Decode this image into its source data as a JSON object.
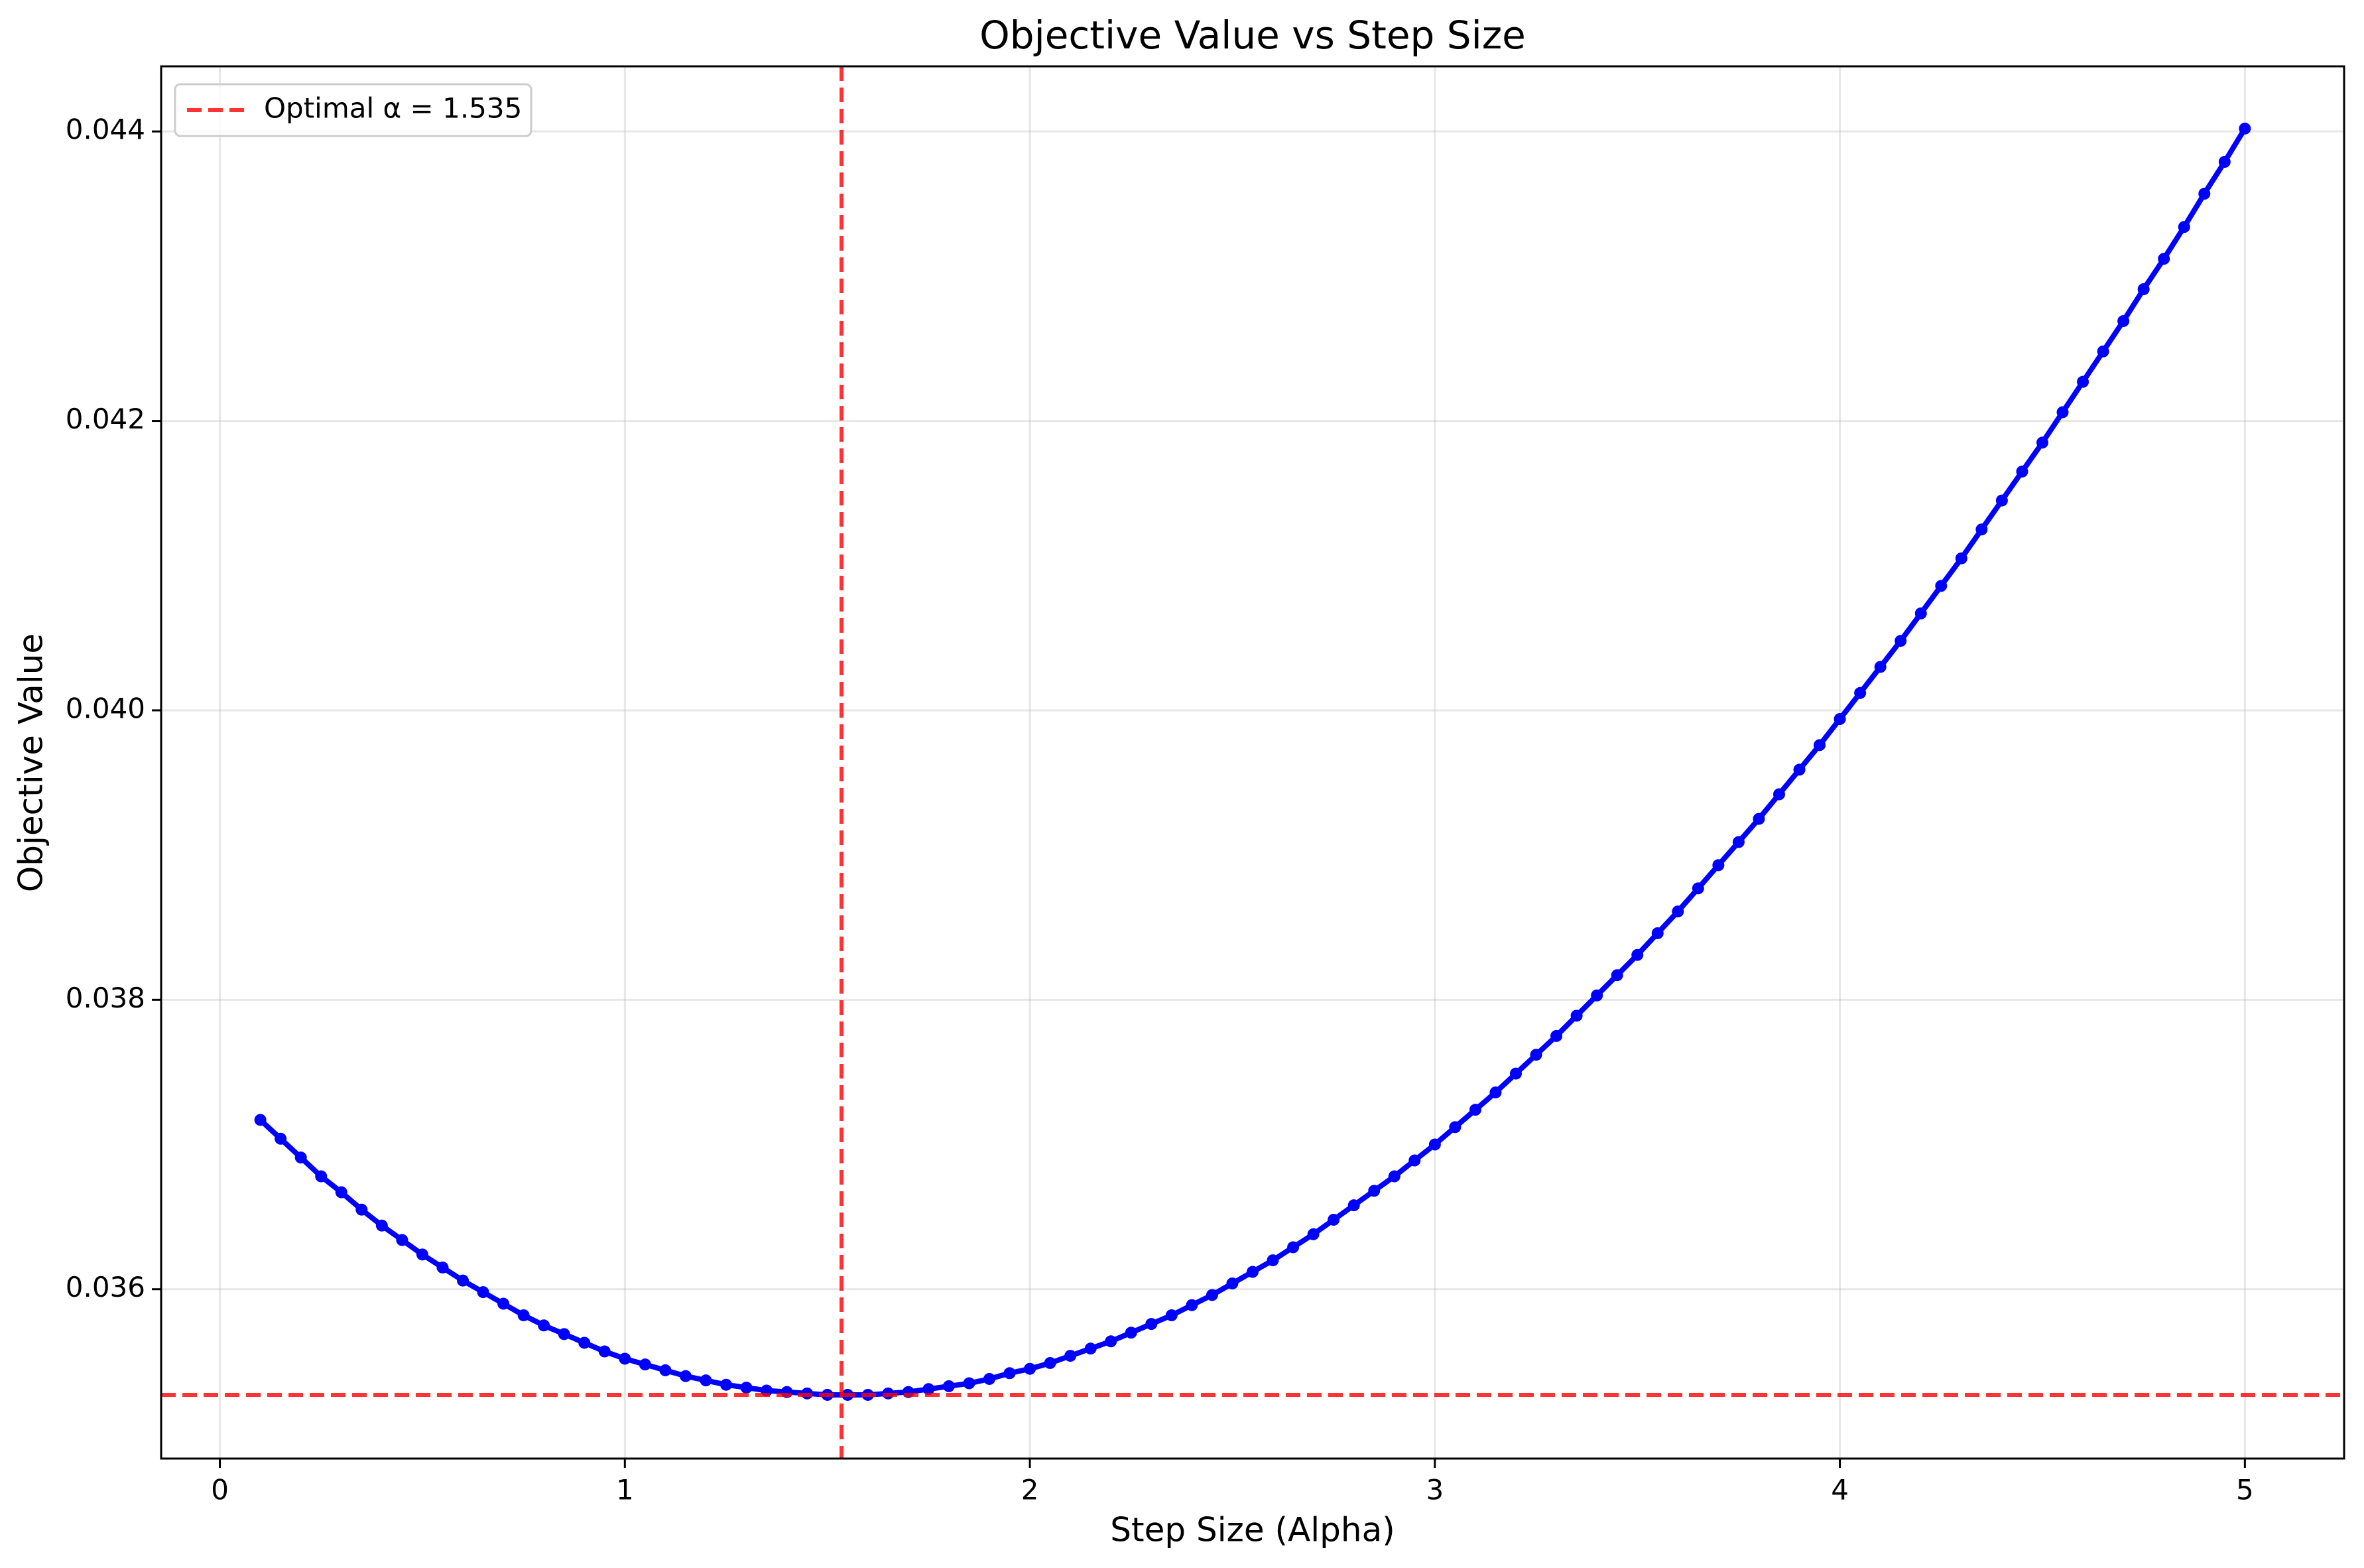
{
  "chart_data": {
    "type": "line",
    "title": "Objective Value vs Step Size",
    "x_label": "Step Size (Alpha)",
    "y_label": "Objective Value",
    "x": [
      0.1,
      0.15,
      0.2,
      0.25,
      0.3,
      0.35,
      0.4,
      0.45,
      0.5,
      0.55,
      0.6,
      0.65,
      0.7,
      0.75,
      0.8,
      0.85,
      0.9,
      0.95,
      1.0,
      1.05,
      1.1,
      1.15,
      1.2,
      1.25,
      1.3,
      1.35,
      1.4,
      1.45,
      1.5,
      1.55,
      1.6,
      1.65,
      1.7,
      1.75,
      1.8,
      1.85,
      1.9,
      1.95,
      2.0,
      2.05,
      2.1,
      2.15,
      2.2,
      2.25,
      2.3,
      2.35,
      2.4,
      2.45,
      2.5,
      2.55,
      2.6,
      2.65,
      2.7,
      2.75,
      2.8,
      2.85,
      2.9,
      2.95,
      3.0,
      3.05,
      3.1,
      3.15,
      3.2,
      3.25,
      3.3,
      3.35,
      3.4,
      3.45,
      3.5,
      3.55,
      3.6,
      3.65,
      3.7,
      3.75,
      3.8,
      3.85,
      3.9,
      3.95,
      4.0,
      4.05,
      4.1,
      4.15,
      4.2,
      4.25,
      4.3,
      4.35,
      4.4,
      4.45,
      4.5,
      4.55,
      4.6,
      4.65,
      4.7,
      4.75,
      4.8,
      4.85,
      4.9,
      4.95,
      5.0
    ],
    "series": [
      {
        "color": "#0000ff",
        "values": [
          0.03717,
          0.03704,
          0.03691,
          0.03678,
          0.03667,
          0.03655,
          0.03644,
          0.03634,
          0.03624,
          0.03615,
          0.03606,
          0.03598,
          0.0359,
          0.03582,
          0.03575,
          0.03569,
          0.03563,
          0.03557,
          0.03552,
          0.03548,
          0.03544,
          0.0354,
          0.03537,
          0.03534,
          0.03532,
          0.0353,
          0.03529,
          0.03528,
          0.03527,
          0.03527,
          0.03527,
          0.03528,
          0.03529,
          0.03531,
          0.03533,
          0.03535,
          0.03538,
          0.03542,
          0.03545,
          0.03549,
          0.03554,
          0.03559,
          0.03564,
          0.0357,
          0.03576,
          0.03582,
          0.03589,
          0.03596,
          0.03604,
          0.03612,
          0.0362,
          0.03629,
          0.03638,
          0.03648,
          0.03658,
          0.03668,
          0.03678,
          0.03689,
          0.037,
          0.03712,
          0.03724,
          0.03736,
          0.03749,
          0.03762,
          0.03775,
          0.03789,
          0.03803,
          0.03817,
          0.03831,
          0.03846,
          0.03861,
          0.03877,
          0.03893,
          0.03909,
          0.03925,
          0.03942,
          0.03959,
          0.03976,
          0.03994,
          0.04012,
          0.0403,
          0.04048,
          0.04067,
          0.04086,
          0.04105,
          0.04125,
          0.04145,
          0.04165,
          0.04185,
          0.04206,
          0.04227,
          0.04248,
          0.04269,
          0.04291,
          0.04312,
          0.04334,
          0.04357,
          0.04379,
          0.04402
        ]
      }
    ],
    "reference_lines": [
      {
        "name": "Optimal α = 1.535",
        "x": 1.535,
        "color": "#ff0000"
      },
      {
        "y": 0.03527,
        "color": "#ff0000"
      }
    ],
    "xlim": [
      -0.145,
      5.245
    ],
    "ylim": [
      0.03483,
      0.04445
    ],
    "xticks": [
      0,
      1,
      2,
      3,
      4,
      5
    ],
    "yticks": [
      0.036,
      0.038,
      {
        "value": 0.04,
        "label": "0.040"
      },
      0.042,
      0.044
    ],
    "grid": true,
    "legend": "upper left"
  }
}
